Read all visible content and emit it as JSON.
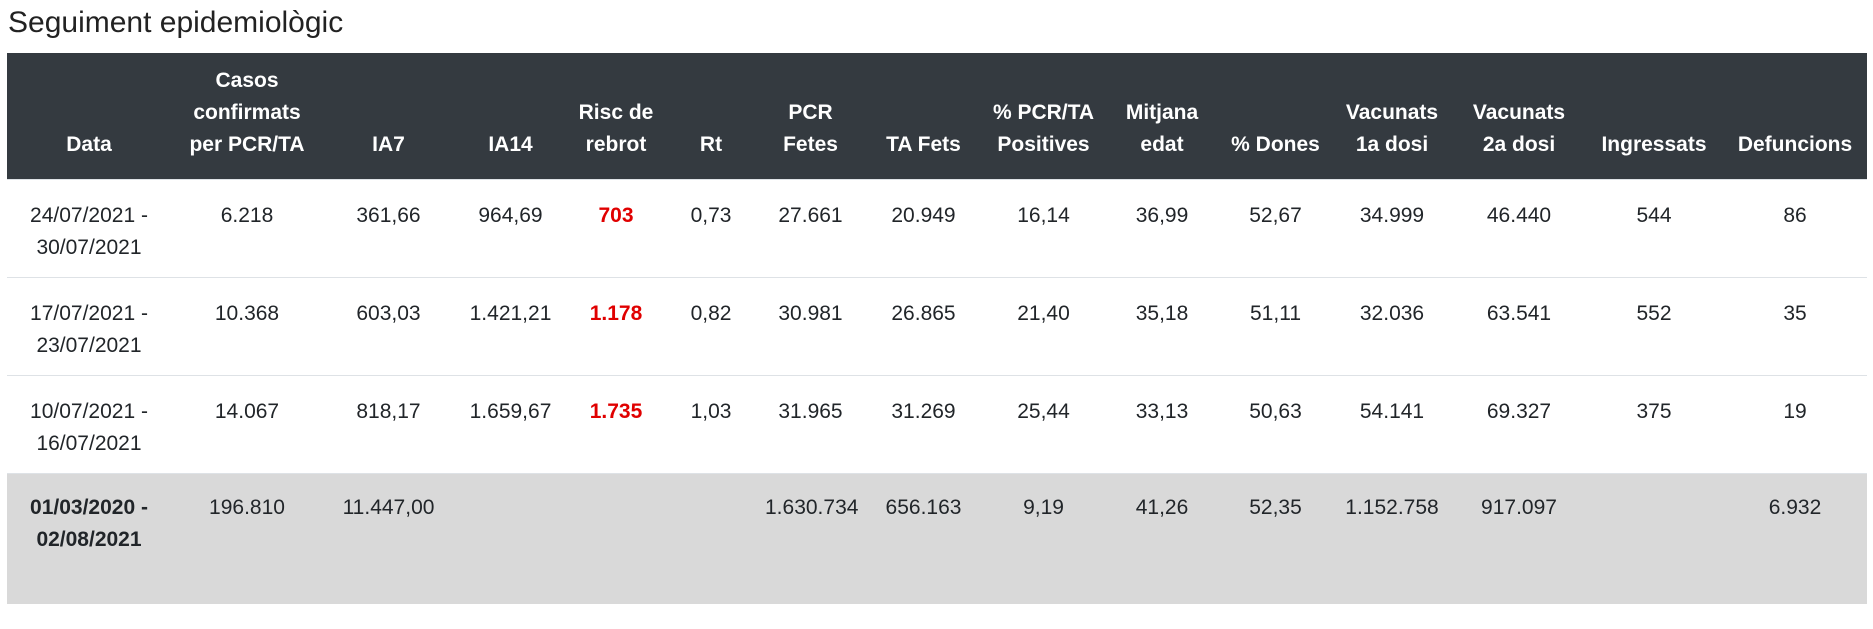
{
  "header": {
    "title": "Seguiment epidemiològic"
  },
  "table": {
    "columns": [
      "Data",
      "Casos confirmats per PCR/TA",
      "IA7",
      "IA14",
      "Risc de rebrot",
      "Rt",
      "PCR Fetes",
      "TA Fets",
      "% PCR/TA Positives",
      "Mitjana edat",
      "% Dones",
      "Vacunats 1a dosi",
      "Vacunats 2a dosi",
      "Ingressats",
      "Defuncions"
    ],
    "rows": [
      [
        "24/07/2021 - 30/07/2021",
        "6.218",
        "361,66",
        "964,69",
        "703",
        "0,73",
        "27.661",
        "20.949",
        "16,14",
        "36,99",
        "52,67",
        "34.999",
        "46.440",
        "544",
        "86"
      ],
      [
        "17/07/2021 - 23/07/2021",
        "10.368",
        "603,03",
        "1.421,21",
        "1.178",
        "0,82",
        "30.981",
        "26.865",
        "21,40",
        "35,18",
        "51,11",
        "32.036",
        "63.541",
        "552",
        "35"
      ],
      [
        "10/07/2021 - 16/07/2021",
        "14.067",
        "818,17",
        "1.659,67",
        "1.735",
        "1,03",
        "31.965",
        "31.269",
        "25,44",
        "33,13",
        "50,63",
        "54.141",
        "69.327",
        "375",
        "19"
      ]
    ],
    "total": [
      "01/03/2020 - 02/08/2021",
      "196.810",
      "11.447,00",
      null,
      null,
      null,
      "1.630.734",
      "656.163",
      "9,19",
      "41,26",
      "52,35",
      "1.152.758",
      "917.097",
      null,
      "6.932"
    ]
  }
}
